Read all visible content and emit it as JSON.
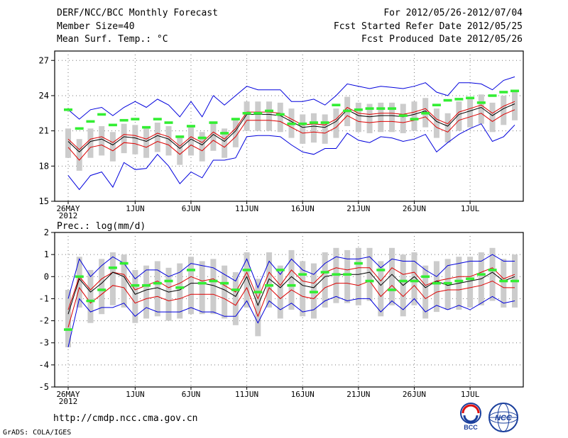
{
  "header": {
    "title": "DERF/NCC/BCC Monthly Forecast",
    "member_size": "Member Size=40",
    "variable": "Mean Surf. Temp.: °C",
    "period": "For 2012/05/26-2012/07/04",
    "start_date": "Fcst Started Refer Date 2012/05/25",
    "produced_date": "Fcst Produced Date 2012/05/26"
  },
  "footer": {
    "url": "http://cmdp.ncc.cma.gov.cn",
    "credit": "GrADS: COLA/IGES",
    "logo_left_text": "BCC",
    "logo_right_text": "NCC"
  },
  "colors": {
    "max_min": "#0000dd",
    "spread": "#dd0000",
    "mean": "#000000",
    "box": "#cccccc",
    "climatology": "#33ee33"
  },
  "chart_data": [
    {
      "type": "line",
      "title": "Mean Surf. Temp.: °C",
      "days": 40,
      "x_tick_labels": [
        "26MAY",
        "1JUN",
        "6JUN",
        "11JUN",
        "16JUN",
        "21JUN",
        "26JUN",
        "1JUL"
      ],
      "x_tick_days": [
        0,
        6,
        11,
        16,
        21,
        26,
        31,
        36
      ],
      "year_label": "2012",
      "y_ticks": [
        15,
        18,
        21,
        24,
        27
      ],
      "ylim": [
        15,
        27.8
      ],
      "series": [
        {
          "name": "max",
          "values": [
            17.2,
            16.0,
            17.2,
            17.5,
            16.2,
            18.3,
            17.7,
            17.8,
            19.0,
            18.0,
            16.5,
            17.5,
            17.0,
            18.5,
            18.5,
            18.7,
            20.5,
            20.6,
            20.6,
            20.5,
            19.8,
            19.2,
            19.0,
            19.5,
            19.5,
            20.8,
            20.2,
            20.0,
            20.5,
            20.4,
            20.1,
            20.3,
            20.7,
            19.2,
            20.0,
            20.7,
            21.2,
            21.6,
            20.1,
            20.5,
            21.5
          ]
        },
        {
          "name": "upper",
          "values": [
            20.3,
            19.4,
            20.3,
            20.5,
            20.0,
            20.7,
            20.6,
            20.3,
            20.8,
            20.5,
            19.7,
            20.5,
            20.0,
            20.9,
            20.3,
            21.2,
            22.6,
            22.6,
            22.6,
            22.5,
            22.0,
            21.5,
            21.6,
            21.5,
            22.0,
            23.0,
            22.5,
            22.4,
            22.5,
            22.5,
            22.4,
            22.6,
            22.9,
            22.0,
            21.6,
            22.6,
            22.9,
            23.2,
            22.5,
            23.1,
            23.5
          ]
        },
        {
          "name": "mean",
          "values": [
            20.1,
            19.2,
            20.1,
            20.3,
            19.8,
            20.5,
            20.4,
            20.1,
            20.6,
            20.3,
            19.5,
            20.3,
            19.8,
            20.7,
            20.1,
            21.0,
            22.4,
            22.4,
            22.4,
            22.3,
            21.8,
            21.3,
            21.4,
            21.3,
            21.8,
            22.8,
            22.3,
            22.2,
            22.3,
            22.3,
            22.2,
            22.4,
            22.7,
            21.8,
            21.4,
            22.4,
            22.7,
            23.0,
            22.3,
            22.9,
            23.3
          ]
        },
        {
          "name": "lower",
          "values": [
            19.6,
            18.5,
            19.6,
            19.8,
            19.3,
            20.0,
            19.9,
            19.6,
            20.1,
            19.8,
            19.0,
            19.8,
            19.3,
            20.2,
            19.6,
            20.5,
            21.9,
            21.9,
            21.9,
            21.8,
            21.3,
            20.8,
            20.9,
            20.8,
            21.3,
            22.3,
            21.8,
            21.7,
            21.8,
            21.8,
            21.7,
            21.9,
            22.2,
            21.3,
            20.9,
            21.9,
            22.2,
            22.5,
            21.8,
            22.4,
            22.8
          ]
        },
        {
          "name": "min",
          "values": [
            22.8,
            22.0,
            22.8,
            23.0,
            22.3,
            23.0,
            23.5,
            23.0,
            23.7,
            23.2,
            22.2,
            23.5,
            22.2,
            24.0,
            23.2,
            24.0,
            24.8,
            24.5,
            24.5,
            24.5,
            23.5,
            23.5,
            23.7,
            23.2,
            24.0,
            25.0,
            24.8,
            24.6,
            24.8,
            24.7,
            24.6,
            24.8,
            25.1,
            24.3,
            24.0,
            25.1,
            25.1,
            25.0,
            24.5,
            25.3,
            25.6
          ]
        },
        {
          "name": "climatology",
          "values": [
            22.8,
            21.2,
            21.8,
            22.4,
            21.5,
            21.9,
            22.0,
            21.3,
            22.0,
            21.7,
            20.5,
            21.4,
            20.4,
            21.7,
            20.8,
            22.0,
            22.5,
            22.5,
            22.7,
            22.4,
            21.6,
            21.6,
            21.7,
            21.7,
            23.2,
            22.7,
            22.8,
            22.9,
            22.9,
            22.9,
            22.3,
            22.0,
            22.5,
            23.2,
            23.6,
            23.7,
            23.8,
            23.4,
            24.0,
            24.3,
            24.4
          ]
        }
      ]
    },
    {
      "type": "line",
      "title": "Prec.: log(mm/d)",
      "days": 40,
      "x_tick_labels": [
        "26MAY",
        "1JUN",
        "6JUN",
        "11JUN",
        "16JUN",
        "21JUN",
        "26JUN",
        "1JUL"
      ],
      "x_tick_days": [
        0,
        6,
        11,
        16,
        21,
        26,
        31,
        36
      ],
      "year_label": "2012",
      "y_ticks": [
        -5,
        -4,
        -3,
        -2,
        -1,
        0,
        1,
        2
      ],
      "ylim": [
        -5,
        2
      ],
      "series": [
        {
          "name": "max",
          "values": [
            -1.0,
            0.8,
            0.0,
            0.5,
            0.9,
            0.6,
            -0.1,
            0.3,
            0.3,
            0.0,
            0.2,
            0.6,
            0.5,
            0.4,
            0.1,
            -0.2,
            0.8,
            -0.5,
            0.7,
            0.1,
            0.8,
            0.3,
            0.1,
            0.6,
            0.9,
            0.8,
            0.8,
            0.9,
            0.4,
            0.8,
            0.7,
            0.7,
            0.3,
            0.0,
            0.5,
            0.6,
            0.7,
            0.7,
            1.0,
            0.7,
            0.7
          ]
        },
        {
          "name": "upper",
          "values": [
            -1.5,
            0.0,
            -0.6,
            -0.1,
            0.2,
            0.1,
            -0.6,
            -0.4,
            -0.2,
            -0.5,
            -0.3,
            0.0,
            -0.2,
            -0.1,
            -0.4,
            -0.7,
            0.2,
            -1.0,
            0.2,
            -0.4,
            0.3,
            -0.2,
            -0.3,
            0.2,
            0.4,
            0.3,
            0.4,
            0.4,
            -0.2,
            0.4,
            0.1,
            0.2,
            -0.4,
            -0.2,
            -0.1,
            0.0,
            0.0,
            0.2,
            0.4,
            -0.1,
            0.1
          ]
        },
        {
          "name": "mean",
          "values": [
            -1.7,
            -0.1,
            -0.7,
            -0.3,
            0.2,
            0.0,
            -0.8,
            -0.6,
            -0.5,
            -0.7,
            -0.6,
            -0.3,
            -0.3,
            -0.4,
            -0.6,
            -0.9,
            0.0,
            -1.3,
            -0.1,
            -0.5,
            0.0,
            -0.4,
            -0.5,
            0.0,
            0.1,
            0.1,
            0.1,
            0.2,
            -0.4,
            0.1,
            -0.4,
            0.0,
            -0.5,
            -0.2,
            -0.4,
            -0.3,
            -0.2,
            -0.1,
            0.2,
            -0.2,
            0.0
          ]
        },
        {
          "name": "lower",
          "values": [
            -2.3,
            -0.5,
            -1.2,
            -0.8,
            -0.4,
            -0.5,
            -1.2,
            -1.0,
            -0.9,
            -1.1,
            -1.0,
            -0.8,
            -0.8,
            -0.8,
            -1.0,
            -1.3,
            -0.5,
            -1.8,
            -0.5,
            -1.0,
            -0.6,
            -0.9,
            -1.0,
            -0.5,
            -0.3,
            -0.3,
            -0.4,
            -0.2,
            -0.9,
            -0.4,
            -0.9,
            -0.4,
            -1.0,
            -0.7,
            -0.6,
            -0.6,
            -0.5,
            -0.4,
            -0.2,
            -0.5,
            -0.5
          ]
        },
        {
          "name": "min",
          "values": [
            -3.2,
            -1.0,
            -1.6,
            -1.4,
            -1.4,
            -1.2,
            -1.8,
            -1.4,
            -1.6,
            -1.6,
            -1.6,
            -1.4,
            -1.6,
            -1.6,
            -1.8,
            -1.8,
            -1.1,
            -2.1,
            -1.1,
            -1.5,
            -1.2,
            -1.6,
            -1.5,
            -1.1,
            -0.9,
            -1.1,
            -1.0,
            -1.0,
            -1.6,
            -1.1,
            -1.5,
            -1.0,
            -1.6,
            -1.3,
            -1.5,
            -1.3,
            -1.5,
            -1.2,
            -0.9,
            -1.2,
            -1.1
          ]
        },
        {
          "name": "climatology",
          "values": [
            -2.4,
            0.0,
            -1.1,
            -0.6,
            0.4,
            0.6,
            -0.4,
            -0.4,
            -0.3,
            -0.2,
            -0.5,
            0.3,
            -0.3,
            -0.2,
            -0.3,
            -0.6,
            0.3,
            -0.7,
            -0.4,
            0.3,
            -0.4,
            0.1,
            -0.7,
            0.2,
            0.1,
            0.1,
            0.6,
            -0.2,
            0.3,
            -0.6,
            -0.2,
            -0.2,
            0.0,
            -0.3,
            -0.3,
            -0.2,
            -0.1,
            0.1,
            0.3,
            -0.2,
            -0.2
          ]
        }
      ]
    }
  ]
}
